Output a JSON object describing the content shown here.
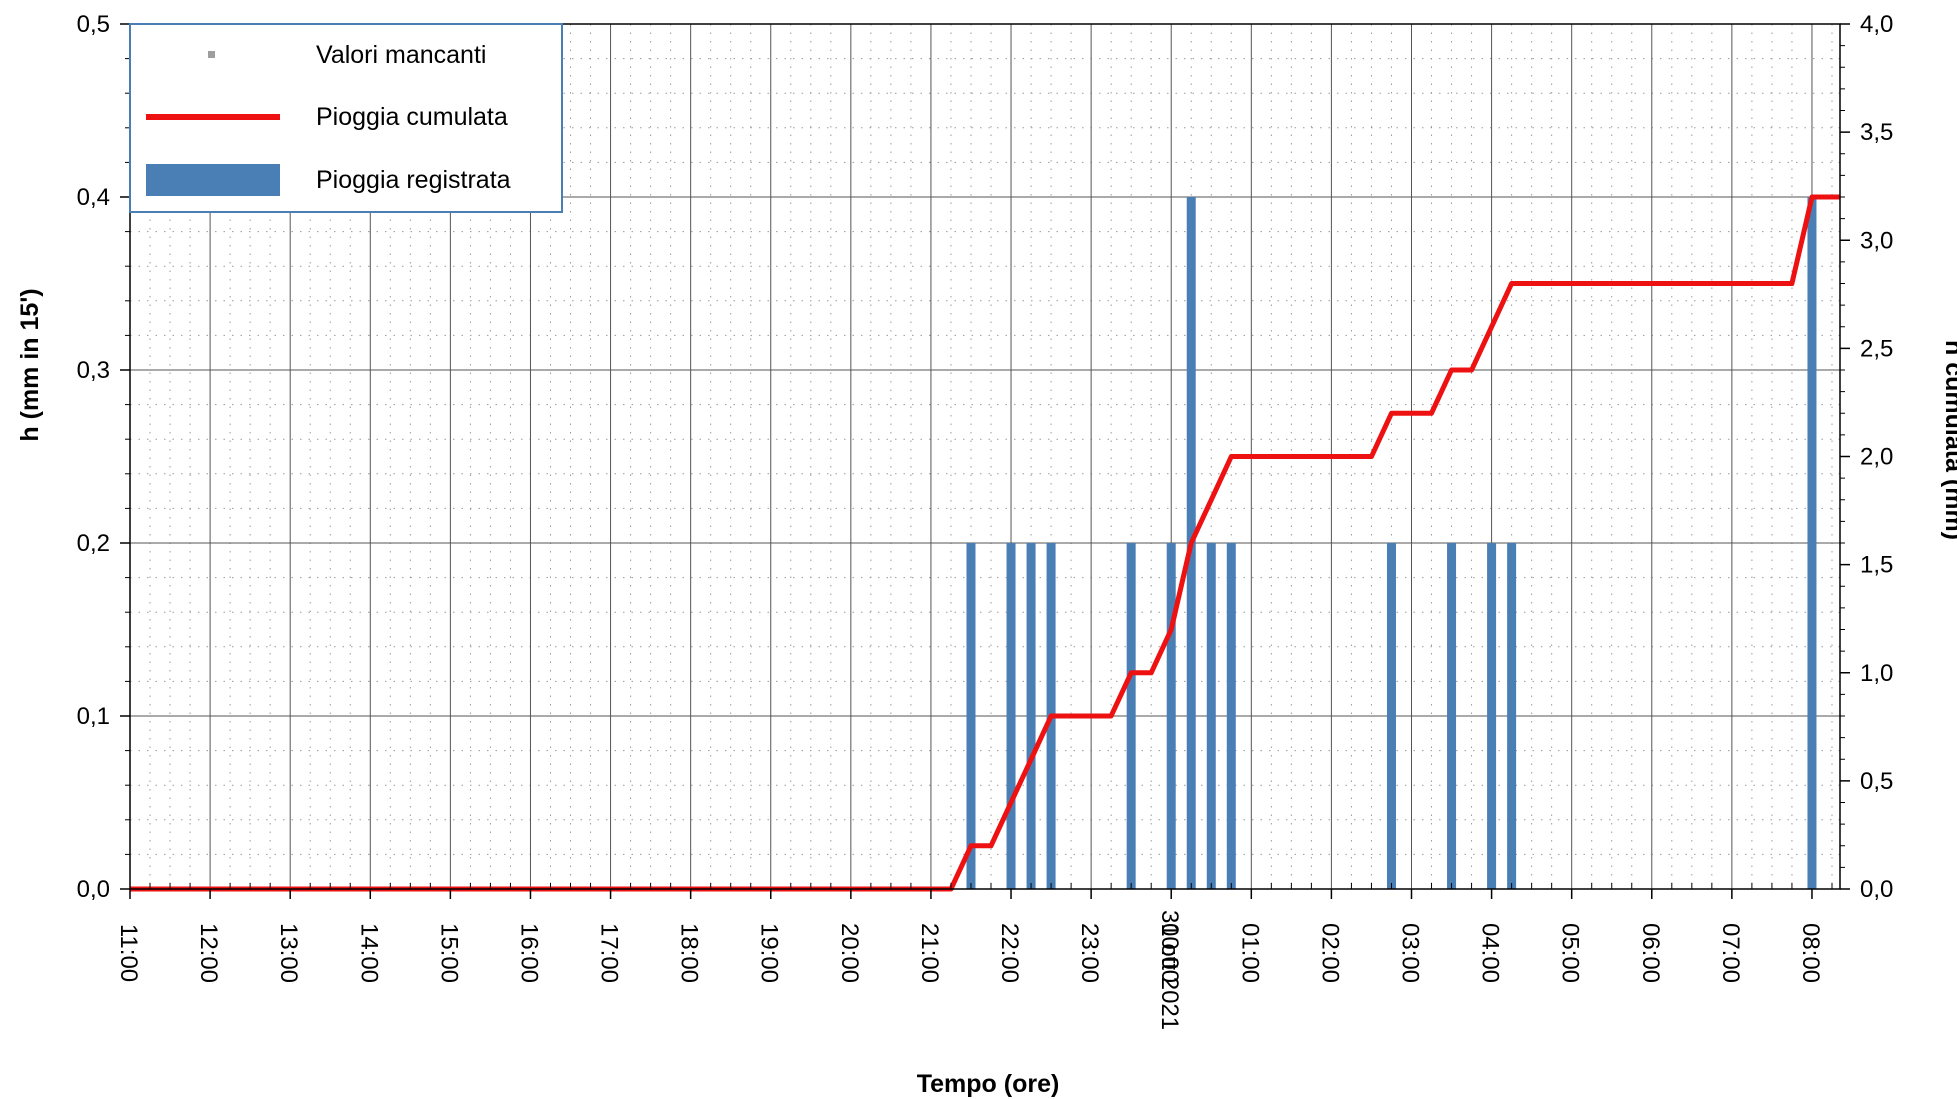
{
  "chart_data": {
    "type": "bar+line",
    "xlabel": "Tempo (ore)",
    "ylabel_left": "h (mm in 15')",
    "ylabel_right": "h cumulata (mm)",
    "ylim_left": [
      0,
      0.5
    ],
    "ylim_right": [
      0,
      4.0
    ],
    "x_range_hours": [
      11.0,
      32.35
    ],
    "y_left_ticks": [
      "0,0",
      "0,1",
      "0,2",
      "0,3",
      "0,4",
      "0,5"
    ],
    "y_right_ticks": [
      "0,0",
      "0,5",
      "1,0",
      "1,5",
      "2,0",
      "2,5",
      "3,0",
      "3,5",
      "4,0"
    ],
    "x_ticks": [
      {
        "hour": 11,
        "label": "11:00"
      },
      {
        "hour": 12,
        "label": "12:00"
      },
      {
        "hour": 13,
        "label": "13:00"
      },
      {
        "hour": 14,
        "label": "14:00"
      },
      {
        "hour": 15,
        "label": "15:00"
      },
      {
        "hour": 16,
        "label": "16:00"
      },
      {
        "hour": 17,
        "label": "17:00"
      },
      {
        "hour": 18,
        "label": "18:00"
      },
      {
        "hour": 19,
        "label": "19:00"
      },
      {
        "hour": 20,
        "label": "20:00"
      },
      {
        "hour": 21,
        "label": "21:00"
      },
      {
        "hour": 22,
        "label": "22:00"
      },
      {
        "hour": 23,
        "label": "23:00"
      },
      {
        "hour": 24,
        "label": "00:00"
      },
      {
        "hour": 25,
        "label": "01:00"
      },
      {
        "hour": 26,
        "label": "02:00"
      },
      {
        "hour": 27,
        "label": "03:00"
      },
      {
        "hour": 28,
        "label": "04:00"
      },
      {
        "hour": 29,
        "label": "05:00"
      },
      {
        "hour": 30,
        "label": "06:00"
      },
      {
        "hour": 31,
        "label": "07:00"
      },
      {
        "hour": 32,
        "label": "08:00"
      }
    ],
    "date_label": {
      "hour": 24,
      "text": "31 ott 2021"
    },
    "series": [
      {
        "name": "Valori mancanti",
        "kind": "marker",
        "color": "#9e9e9e",
        "values": []
      },
      {
        "name": "Pioggia registrata",
        "kind": "bar",
        "color": "#4a7fb5",
        "points": [
          {
            "hour": 21.5,
            "value": 0.2
          },
          {
            "hour": 22.0,
            "value": 0.2
          },
          {
            "hour": 22.25,
            "value": 0.2
          },
          {
            "hour": 22.5,
            "value": 0.2
          },
          {
            "hour": 23.5,
            "value": 0.2
          },
          {
            "hour": 24.0,
            "value": 0.2
          },
          {
            "hour": 24.25,
            "value": 0.4
          },
          {
            "hour": 24.5,
            "value": 0.2
          },
          {
            "hour": 24.75,
            "value": 0.2
          },
          {
            "hour": 26.75,
            "value": 0.2
          },
          {
            "hour": 27.5,
            "value": 0.2
          },
          {
            "hour": 28.0,
            "value": 0.2
          },
          {
            "hour": 28.25,
            "value": 0.2
          },
          {
            "hour": 32.0,
            "value": 0.4
          }
        ]
      },
      {
        "name": "Pioggia cumulata",
        "kind": "line",
        "color": "#ee1111",
        "axis": "right",
        "points": [
          {
            "hour": 11.0,
            "value": 0.0
          },
          {
            "hour": 21.25,
            "value": 0.0
          },
          {
            "hour": 21.5,
            "value": 0.2
          },
          {
            "hour": 21.75,
            "value": 0.2
          },
          {
            "hour": 22.0,
            "value": 0.4
          },
          {
            "hour": 22.25,
            "value": 0.6
          },
          {
            "hour": 22.5,
            "value": 0.8
          },
          {
            "hour": 23.25,
            "value": 0.8
          },
          {
            "hour": 23.5,
            "value": 1.0
          },
          {
            "hour": 23.75,
            "value": 1.0
          },
          {
            "hour": 24.0,
            "value": 1.2
          },
          {
            "hour": 24.25,
            "value": 1.6
          },
          {
            "hour": 24.5,
            "value": 1.8
          },
          {
            "hour": 24.75,
            "value": 2.0
          },
          {
            "hour": 26.5,
            "value": 2.0
          },
          {
            "hour": 26.75,
            "value": 2.2
          },
          {
            "hour": 27.25,
            "value": 2.2
          },
          {
            "hour": 27.5,
            "value": 2.4
          },
          {
            "hour": 27.75,
            "value": 2.4
          },
          {
            "hour": 28.0,
            "value": 2.6
          },
          {
            "hour": 28.25,
            "value": 2.8
          },
          {
            "hour": 31.75,
            "value": 2.8
          },
          {
            "hour": 32.0,
            "value": 3.2
          },
          {
            "hour": 32.35,
            "value": 3.2
          }
        ]
      }
    ],
    "legend": {
      "placement": "top-left",
      "entries": [
        {
          "label": "Valori mancanti",
          "symbol": "marker",
          "color": "#9e9e9e"
        },
        {
          "label": "Pioggia cumulata",
          "symbol": "line",
          "color": "#ee1111"
        },
        {
          "label": "Pioggia registrata",
          "symbol": "bar",
          "color": "#4a7fb5"
        }
      ]
    },
    "grid": {
      "major": true,
      "minor_dotted": true
    }
  }
}
